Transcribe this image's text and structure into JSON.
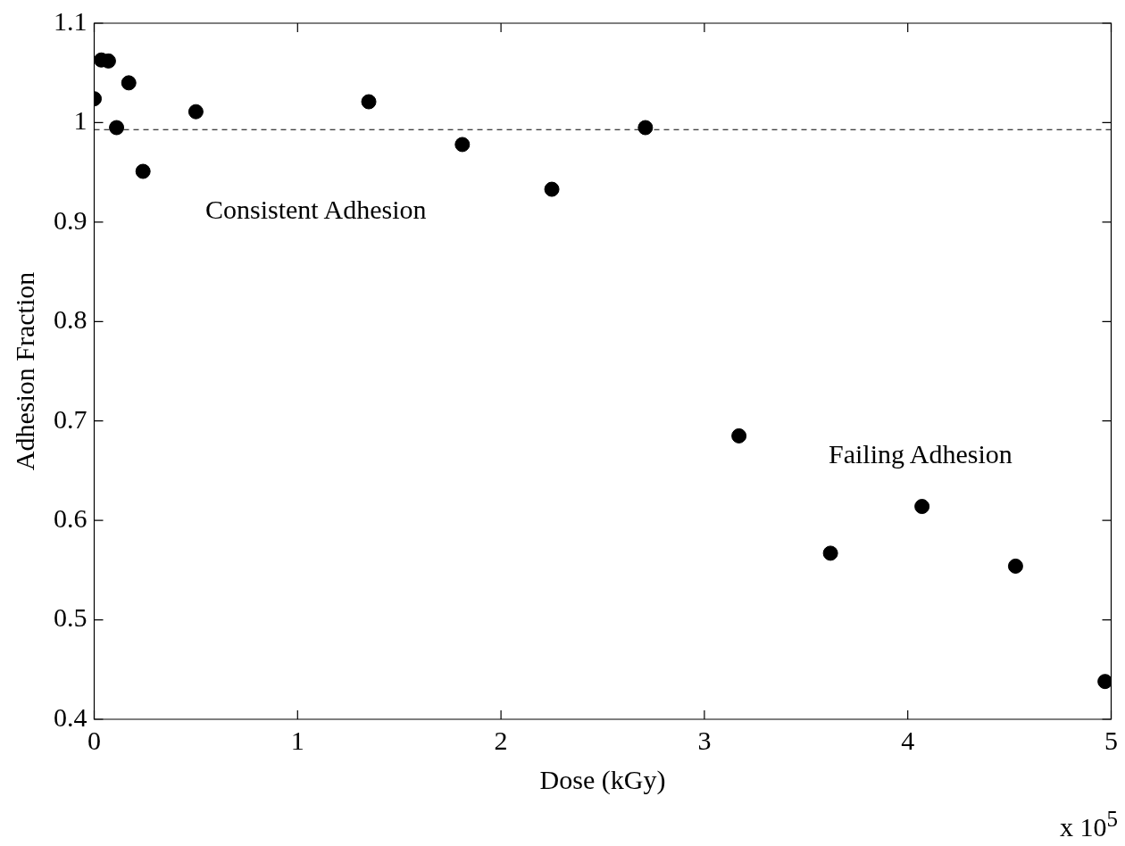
{
  "chart_data": {
    "type": "scatter",
    "xlabel": "Dose (kGy)",
    "ylabel": "Adhesion Fraction",
    "x": [
      0,
      0.035,
      0.07,
      0.17,
      0.11,
      0.24,
      0.5,
      1.35,
      1.81,
      2.25,
      2.71,
      3.17,
      3.62,
      4.07,
      4.53,
      4.97
    ],
    "series": [
      {
        "color": "#000000",
        "values": [
          1.024,
          1.063,
          1.062,
          1.04,
          0.995,
          0.951,
          1.011,
          1.021,
          0.978,
          0.933,
          0.995,
          0.685,
          0.567,
          0.614,
          0.554,
          0.438
        ]
      }
    ],
    "xlim": [
      0,
      5
    ],
    "xticks": [
      0,
      1,
      2,
      3,
      4,
      5
    ],
    "ylim": [
      0.4,
      1.1
    ],
    "yticks": [
      0.4,
      0.5,
      0.6,
      0.7,
      0.8,
      0.9,
      1,
      1.1
    ],
    "ref_lines": [
      {
        "axis": "y",
        "value": 0.993,
        "line_style": "dashed",
        "color": "#000000"
      }
    ],
    "annotations": [
      "Consistent Adhesion",
      "Failing Adhesion",
      "x 10$^{5}$"
    ],
    "marker": "circle",
    "grid": false,
    "legend": false
  }
}
